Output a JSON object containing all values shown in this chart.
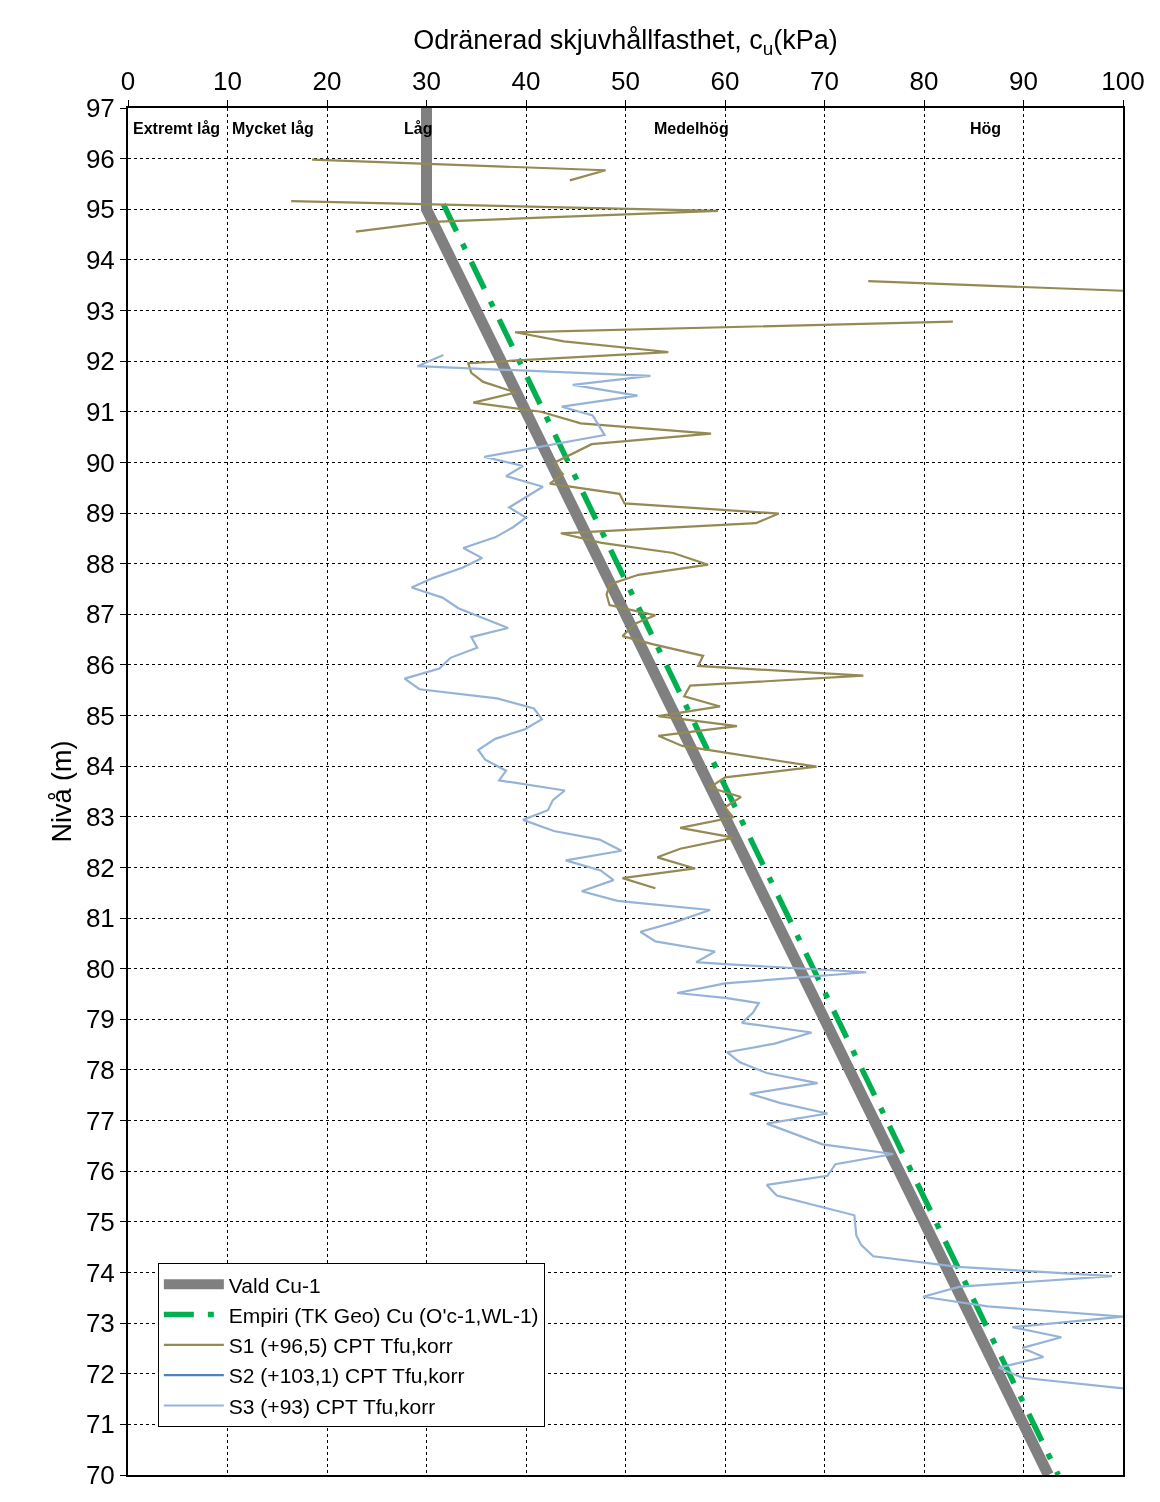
{
  "chart_data": {
    "type": "line",
    "xlabel": "Odränerad skjuvhållfasthet, c$_{u}$(kPa)",
    "ylabel": "Nivå (m)",
    "xlim": [
      0,
      100
    ],
    "xticks": [
      0,
      10,
      20,
      30,
      40,
      50,
      60,
      70,
      80,
      90,
      100
    ],
    "ylim": [
      70,
      97
    ],
    "yticks": [
      70,
      71,
      72,
      73,
      74,
      75,
      76,
      77,
      78,
      79,
      80,
      81,
      82,
      83,
      84,
      85,
      86,
      87,
      88,
      89,
      90,
      91,
      92,
      93,
      94,
      95,
      96,
      97
    ],
    "grid": true,
    "legend": "bottom left",
    "marker": "none",
    "annotations": [
      "Extremt låg",
      "Mycket låg",
      "Låg",
      "Medelhög",
      "Hög"
    ],
    "series": [
      {
        "name": "Vald Cu-1",
        "color": "#808080",
        "line_style": "solid",
        "x": [
          30,
          30,
          92.5
        ],
        "values": [
          97,
          95,
          70
        ]
      },
      {
        "name": "Empiri (TK Geo) Cu (O'c-1,WL-1)",
        "color": "#00b050",
        "line_style": "dashdot",
        "x": [
          31.7,
          93.5
        ],
        "values": [
          95.1,
          70
        ]
      },
      {
        "name": "S1 (+96,5) CPT Tfu,korr",
        "color": "#948a54",
        "line_style": "solid",
        "x": [
          18.5,
          48.0,
          44.4,
          null,
          16.4,
          59.3,
          30.6,
          22.9,
          null,
          74.4,
          100,
          null,
          82.9,
          38.9,
          43.8,
          54.3,
          34.2,
          34.5,
          35.7,
          39.0,
          34.7,
          41.5,
          45.5,
          58.6,
          46.6,
          42.8,
          43.7,
          42.4,
          49.4,
          49.9,
          65.4,
          63.1,
          43.5,
          47.6,
          54.8,
          58.3,
          51.3,
          48.4,
          48.1,
          48.4,
          53.0,
          51.0,
          49.7,
          52.7,
          57.8,
          57.3,
          73.9,
          56.5,
          55.9,
          59.5,
          53.3,
          61.2,
          53.3,
          55.7,
          69.2,
          60.0,
          58.5,
          61.6,
          60.0,
          60.8,
          55.5,
          60.9,
          55.5,
          53.2,
          57.0,
          49.7,
          53.0
        ],
        "values": [
          95.98,
          95.77,
          95.57,
          null,
          95.16,
          94.97,
          94.75,
          94.56,
          null,
          93.58,
          93.39,
          null,
          92.78,
          92.57,
          92.39,
          92.18,
          91.96,
          91.77,
          91.59,
          91.38,
          91.18,
          91.0,
          90.77,
          90.57,
          90.36,
          89.99,
          89.77,
          89.58,
          89.38,
          89.19,
          88.99,
          88.8,
          88.6,
          88.41,
          88.21,
          87.98,
          87.78,
          87.59,
          87.39,
          87.18,
          86.98,
          86.82,
          86.57,
          86.41,
          86.18,
          85.98,
          85.79,
          85.59,
          85.38,
          85.18,
          84.99,
          84.79,
          84.6,
          84.4,
          83.99,
          83.78,
          83.58,
          83.39,
          83.19,
          82.99,
          82.78,
          82.59,
          82.37,
          82.2,
          81.98,
          81.79,
          81.59
        ]
      },
      {
        "name": "S2 (+103,1) CPT Tfu,korr",
        "color": "#4f81bd",
        "line_style": "solid"
      },
      {
        "name": "S3 (+93) CPT Tfu,korr",
        "color": "#95b3d7",
        "line_style": "solid",
        "x": [
          31.7,
          29.1,
          52.5,
          44.7,
          51.2,
          43.6,
          46.7,
          47.9,
          35.8,
          39.7,
          38.0,
          41.7,
          38.3,
          40.0,
          38.7,
          36.9,
          33.7,
          35.6,
          33.6,
          30.7,
          28.5,
          31.6,
          33.2,
          38.2,
          34.5,
          35.1,
          32.4,
          31.3,
          27.8,
          29.3,
          37.1,
          40.8,
          41.6,
          39.9,
          36.9,
          35.2,
          35.9,
          38.0,
          37.3,
          43.9,
          42.7,
          42.2,
          39.7,
          42.8,
          47.4,
          49.6,
          44.0,
          47.5,
          48.8,
          45.6,
          49.2,
          58.5,
          54.8,
          51.5,
          53.0,
          59.0,
          57.1,
          60.0,
          74.2,
          60.0,
          55.2,
          60.2,
          63.4,
          62.8,
          61.7,
          68.7,
          65.0,
          60.2,
          61.5,
          64.2,
          69.3,
          62.5,
          65.5,
          70.3,
          64.2,
          69.8,
          76.9,
          71.1,
          70.3,
          64.2,
          65.2,
          73.0,
          73.2,
          73.7,
          74.9,
          83.4,
          98.9,
          83.6,
          79.9,
          86.4,
          100,
          88.9,
          93.8,
          89.9,
          92.0,
          87.5,
          89.9,
          100
        ],
        "values": [
          92.12,
          91.9,
          91.71,
          91.53,
          91.32,
          91.1,
          90.93,
          90.54,
          90.11,
          89.93,
          89.73,
          89.52,
          89.11,
          88.91,
          88.72,
          88.52,
          88.31,
          88.11,
          87.92,
          87.72,
          87.53,
          87.33,
          87.12,
          86.73,
          86.55,
          86.34,
          86.14,
          85.93,
          85.73,
          85.52,
          85.34,
          85.14,
          84.93,
          84.73,
          84.54,
          84.32,
          84.13,
          83.91,
          83.72,
          83.52,
          83.33,
          83.13,
          82.94,
          82.72,
          82.55,
          82.33,
          82.14,
          81.94,
          81.75,
          81.53,
          81.34,
          81.16,
          80.91,
          80.73,
          80.54,
          80.34,
          80.13,
          80.09,
          79.93,
          79.71,
          79.52,
          79.42,
          79.32,
          79.13,
          78.93,
          78.74,
          78.52,
          78.35,
          78.15,
          77.94,
          77.74,
          77.53,
          77.35,
          77.14,
          76.94,
          76.53,
          76.34,
          76.14,
          75.91,
          75.73,
          75.52,
          75.13,
          74.73,
          74.54,
          74.32,
          74.11,
          73.93,
          73.72,
          73.52,
          73.33,
          73.13,
          72.92,
          72.72,
          72.51,
          72.33,
          72.12,
          71.92,
          71.71
        ]
      }
    ]
  }
}
